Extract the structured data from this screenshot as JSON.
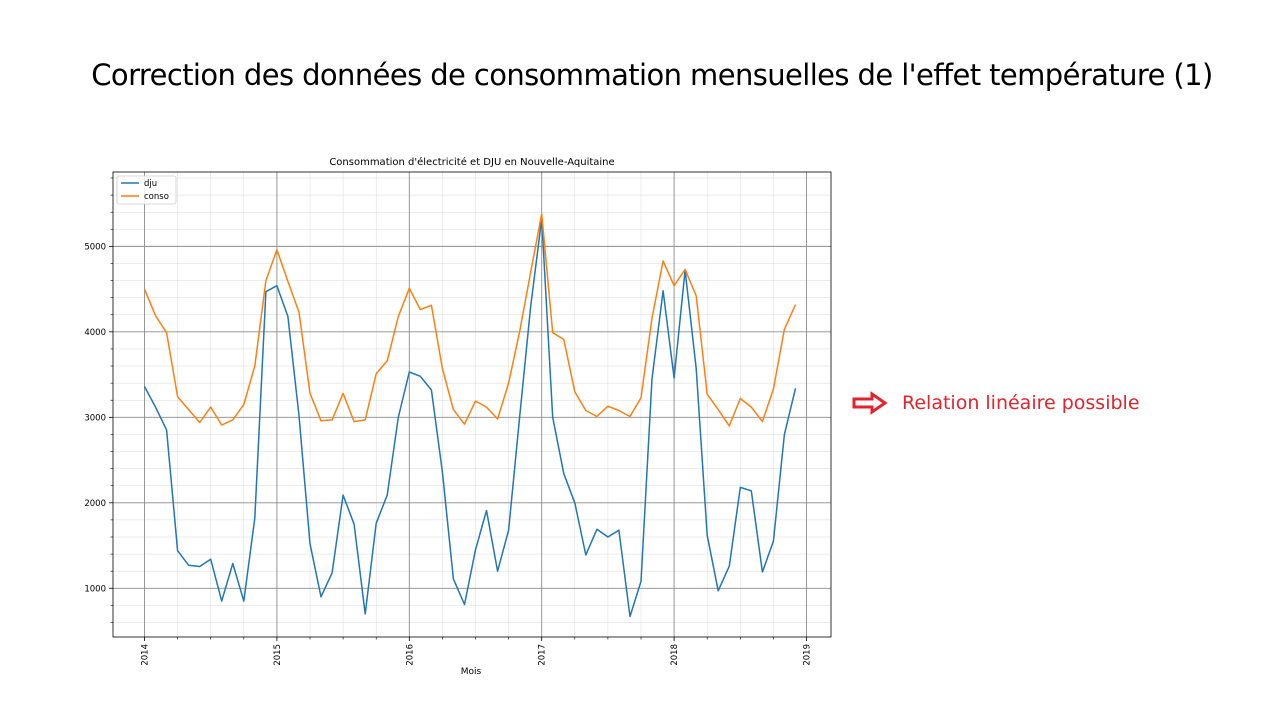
{
  "slide": {
    "title": "Correction des données de consommation mensuelles de l'effet température (1)",
    "note": "Relation linéaire possible",
    "note_color": "#e3232b"
  },
  "chart_data": {
    "type": "line",
    "title": "Consommation d'électricité et DJU en Nouvelle-Aquitaine",
    "xlabel": "Mois",
    "ylabel": "",
    "x_start": "2014-01",
    "x_end": "2018-12",
    "x_ticks": [
      "2014",
      "2015",
      "2016",
      "2017",
      "2018",
      "2019"
    ],
    "y_ticks": [
      1000,
      2000,
      3000,
      4000,
      5000
    ],
    "ylim": [
      430,
      5870
    ],
    "grid": true,
    "legend": "top-left",
    "series": [
      {
        "name": "dju",
        "color": "#1f77b4",
        "values": [
          3360,
          3120,
          2850,
          1440,
          1270,
          1255,
          1340,
          850,
          1290,
          850,
          1820,
          4470,
          4540,
          4180,
          3020,
          1520,
          900,
          1180,
          2090,
          1750,
          700,
          1760,
          2090,
          3000,
          3530,
          3480,
          3320,
          2360,
          1110,
          810,
          1450,
          1910,
          1200,
          1680,
          3000,
          4300,
          5320,
          3000,
          2340,
          2000,
          1390,
          1690,
          1600,
          1680,
          670,
          1080,
          3450,
          4480,
          3460,
          4720,
          3570,
          1620,
          970,
          1260,
          2180,
          2140,
          1190,
          1550,
          2800,
          3340
        ]
      },
      {
        "name": "conso",
        "color": "#ff7f0e",
        "values": [
          4500,
          4190,
          3990,
          3240,
          3090,
          2940,
          3120,
          2910,
          2970,
          3150,
          3600,
          4600,
          4960,
          4590,
          4230,
          3280,
          2960,
          2970,
          3280,
          2950,
          2970,
          3510,
          3660,
          4180,
          4510,
          4260,
          4310,
          3570,
          3090,
          2920,
          3190,
          3120,
          2980,
          3400,
          4000,
          4700,
          5380,
          3990,
          3910,
          3300,
          3080,
          3010,
          3130,
          3080,
          3010,
          3230,
          4160,
          4830,
          4540,
          4730,
          4420,
          3270,
          3090,
          2900,
          3220,
          3120,
          2950,
          3330,
          4030,
          4320
        ]
      }
    ]
  }
}
